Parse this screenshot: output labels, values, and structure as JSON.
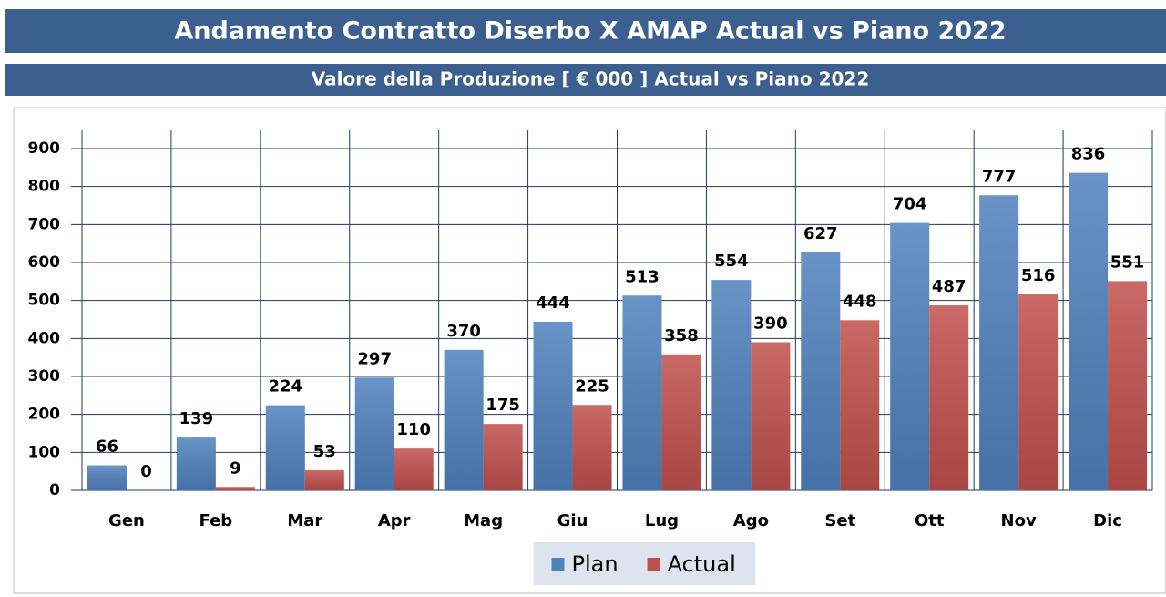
{
  "chart_data": {
    "type": "bar",
    "title": "Andamento Contratto Diserbo X AMAP  Actual vs Piano 2022",
    "subtitle": "Valore della Produzione [ € 000 ] Actual vs Piano 2022",
    "categories": [
      "Gen",
      "Feb",
      "Mar",
      "Apr",
      "Mag",
      "Giu",
      "Lug",
      "Ago",
      "Set",
      "Ott",
      "Nov",
      "Dic"
    ],
    "series": [
      {
        "name": "Plan",
        "color": "#4f81bd",
        "values": [
          66,
          139,
          224,
          297,
          370,
          444,
          513,
          554,
          627,
          704,
          777,
          836
        ]
      },
      {
        "name": "Actual",
        "color": "#c0504d",
        "values": [
          0,
          9,
          53,
          110,
          175,
          225,
          358,
          390,
          448,
          487,
          516,
          551
        ]
      }
    ],
    "ylim": [
      0,
      900
    ],
    "yticks": [
      0,
      100,
      200,
      300,
      400,
      500,
      600,
      700,
      800,
      900
    ],
    "grid": true,
    "legend": "bottom"
  }
}
